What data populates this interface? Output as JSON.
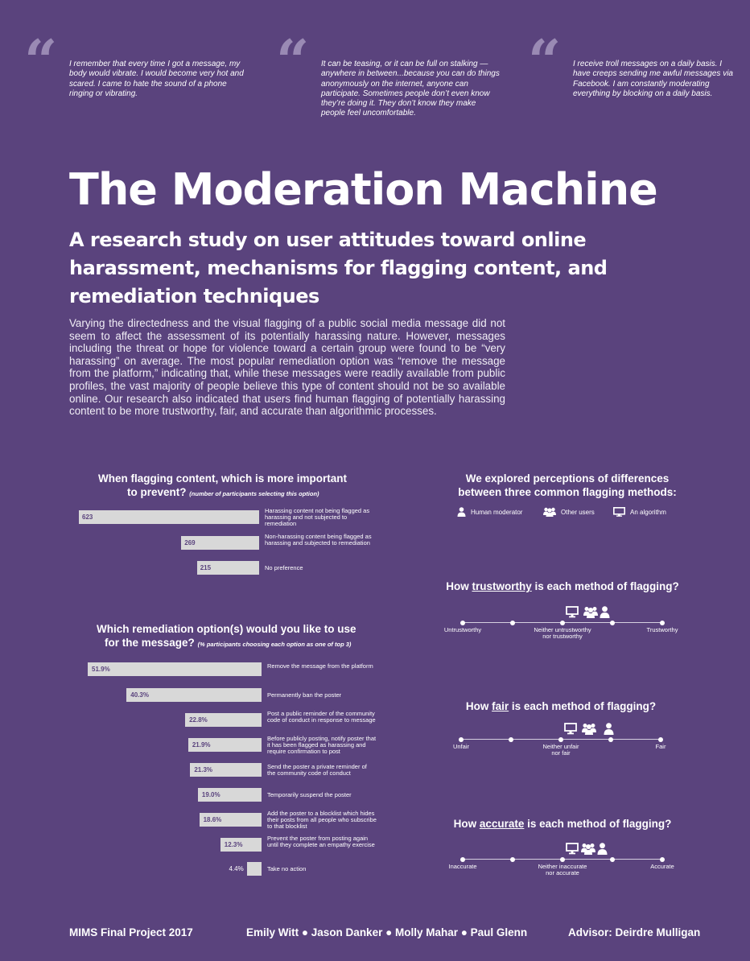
{
  "quotes": [
    {
      "mark": "“",
      "text": "I remember that every time I got a message, my body would vibrate. I would become very hot and scared. I came to hate the sound of a phone ringing or vibrating."
    },
    {
      "mark": "“",
      "text": "It can be teasing, or it can be full on stalking — anywhere in between...because you can do things anonymously on the internet, anyone can participate. Sometimes people don’t even know they’re doing it. They don’t know they make people feel uncomfortable."
    },
    {
      "mark": "“",
      "text": "I receive troll messages on a daily basis. I have creeps sending me awful messages via Facebook. I am constantly moderating everything by blocking on a daily basis."
    }
  ],
  "title": "The Moderation Machine",
  "subtitle": "A research study on user attitudes toward online harassment, mechanisms for flagging content, and remediation techniques",
  "intro": "Varying the directedness and the visual flagging of a public social media message did not seem to affect the assessment of its potentially harassing nature. However, messages including the threat or hope for violence toward a certain group were found to be “very harassing” on average. The most popular remediation option was “remove the message from the platform,” indicating that, while these messages were readily available from public profiles, the vast majority of people believe this type of content should not be so available online. Our research also indicated that users find human flagging of potentially harassing content to be more trustworthy, fair, and accurate than algorithmic processes.",
  "colors": {
    "background": "#5a437d",
    "bar": "#d8d8d8",
    "quote_mark": "#9a8ab4"
  },
  "chart_data": [
    {
      "type": "bar",
      "orientation": "horizontal",
      "title_line1": "When flagging content, which is more important",
      "title_line2": "to prevent?",
      "note": "(number of participants selecting this option)",
      "categories": [
        "Harassing content not being flagged as harassing and not subjected to remediation",
        "Non-harassing content being flagged as harassing and subjected to remediation",
        "No preference"
      ],
      "values": [
        623,
        269,
        215
      ],
      "value_labels": [
        "623",
        "269",
        "215"
      ]
    },
    {
      "type": "bar",
      "orientation": "horizontal",
      "title_line1": "Which remediation option(s) would you like to use",
      "title_line2": "for the message?",
      "note": "(% participants choosing each option as one of top 3)",
      "categories": [
        "Remove the message from the platform",
        "Permanently ban the poster",
        "Post a public reminder of the community code of conduct in response to message",
        "Before publicly posting, notify poster that it has been flagged as harassing and require confirmation to post",
        "Send the poster a private reminder of the community code of conduct",
        "Temporarily suspend the poster",
        "Add the poster to a blocklist which hides their posts from all people who subscribe to that blocklist",
        "Prevent the poster from posting again until they complete an empathy exercise",
        "Take no action"
      ],
      "values": [
        51.9,
        40.3,
        22.8,
        21.9,
        21.3,
        19.0,
        18.6,
        12.3,
        4.4
      ],
      "value_labels": [
        "51.9%",
        "40.3%",
        "22.8%",
        "21.9%",
        "21.3%",
        "19.0%",
        "18.6%",
        "12.3%",
        "4.4%"
      ]
    }
  ],
  "methods": {
    "title_line1": "We explored perceptions of differences",
    "title_line2": "between three common flagging methods:",
    "legend": [
      {
        "icon": "person-icon",
        "label": "Human moderator"
      },
      {
        "icon": "group-icon",
        "label": "Other users"
      },
      {
        "icon": "monitor-icon",
        "label": "An algorithm"
      }
    ]
  },
  "scales": [
    {
      "pre": "How ",
      "word": "trustworthy",
      "post": " is each method of flagging?",
      "left": "Untrustworthy",
      "mid_line1": "Neither untrustworthy",
      "mid_line2": "nor trustworthy",
      "right": "Trustworthy",
      "positions": {
        "algorithm": 0.55,
        "users": 0.64,
        "human": 0.71
      }
    },
    {
      "pre": "How ",
      "word": "fair",
      "post": " is each method of flagging?",
      "left": "Unfair",
      "mid_line1": "Neither unfair",
      "mid_line2": "nor fair",
      "right": "Fair",
      "positions": {
        "algorithm": 0.55,
        "users": 0.64,
        "human": 0.74
      }
    },
    {
      "pre": "How ",
      "word": "accurate",
      "post": " is each method of flagging?",
      "left": "Inaccurate",
      "mid_line1": "Neither inaccurate",
      "mid_line2": "nor accurate",
      "right": "Accurate",
      "positions": {
        "algorithm": 0.55,
        "users": 0.63,
        "human": 0.7
      }
    }
  ],
  "footer": {
    "left": "MIMS Final Project 2017",
    "center": "Emily Witt ● Jason Danker ● Molly Mahar ● Paul Glenn",
    "right": "Advisor: Deirdre Mulligan"
  }
}
